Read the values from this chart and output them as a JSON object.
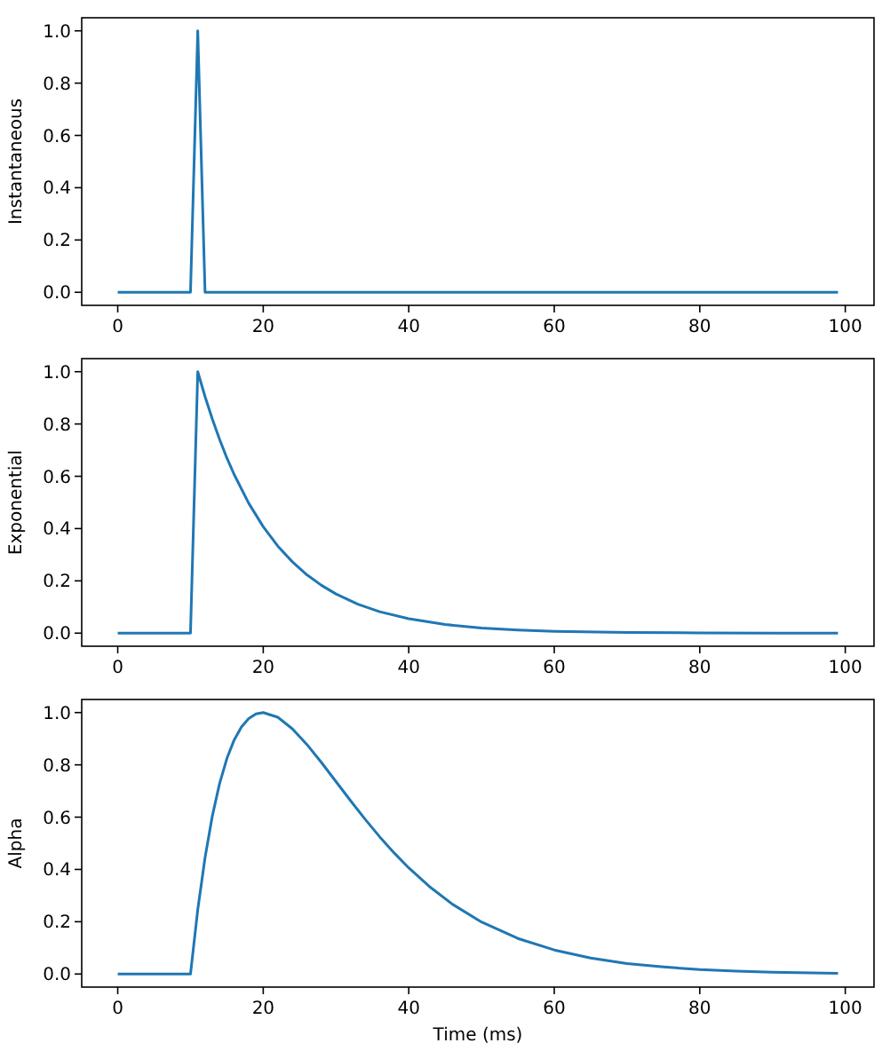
{
  "chart_data": [
    {
      "type": "line",
      "ylabel": "Instantaneous",
      "x": [
        0,
        10,
        11,
        12,
        99
      ],
      "series": [
        {
          "color": "#1f77b4",
          "values": [
            0,
            0,
            1,
            0,
            0
          ]
        }
      ],
      "xlim": [
        -4.95,
        103.95
      ],
      "ylim": [
        -0.05,
        1.05
      ],
      "xticks": [
        0,
        20,
        40,
        60,
        80,
        100
      ],
      "yticks": [
        {
          "value": 0,
          "label": "0.0"
        },
        {
          "value": 0.2,
          "label": "0.2"
        },
        {
          "value": 0.4,
          "label": "0.4"
        },
        {
          "value": 0.6,
          "label": "0.6"
        },
        {
          "value": 0.8,
          "label": "0.8"
        },
        {
          "value": 1,
          "label": "1.0"
        }
      ]
    },
    {
      "type": "line",
      "ylabel": "Exponential",
      "x": [
        0,
        10,
        11,
        12,
        13,
        14,
        15,
        16,
        18,
        20,
        22,
        24,
        26,
        28,
        30,
        33,
        36,
        40,
        45,
        50,
        55,
        60,
        70,
        80,
        90,
        99
      ],
      "series": [
        {
          "color": "#1f77b4",
          "values": [
            0,
            0,
            1,
            0.905,
            0.819,
            0.741,
            0.67,
            0.607,
            0.497,
            0.407,
            0.333,
            0.273,
            0.223,
            0.183,
            0.15,
            0.111,
            0.082,
            0.055,
            0.033,
            0.02,
            0.012,
            0.007,
            0.003,
            0.001,
            0,
            0
          ]
        }
      ],
      "xlim": [
        -4.95,
        103.95
      ],
      "ylim": [
        -0.05,
        1.05
      ],
      "xticks": [
        0,
        20,
        40,
        60,
        80,
        100
      ],
      "yticks": [
        {
          "value": 0,
          "label": "0.0"
        },
        {
          "value": 0.2,
          "label": "0.2"
        },
        {
          "value": 0.4,
          "label": "0.4"
        },
        {
          "value": 0.6,
          "label": "0.6"
        },
        {
          "value": 0.8,
          "label": "0.8"
        },
        {
          "value": 1,
          "label": "1.0"
        }
      ]
    },
    {
      "type": "line",
      "ylabel": "Alpha",
      "xlabel": "Time (ms)",
      "x": [
        0,
        10,
        11,
        12,
        13,
        14,
        15,
        16,
        17,
        18,
        19,
        20,
        22,
        24,
        26,
        28,
        30,
        32,
        34,
        36,
        38,
        40,
        43,
        46,
        50,
        55,
        60,
        65,
        70,
        75,
        80,
        85,
        90,
        99
      ],
      "series": [
        {
          "color": "#1f77b4",
          "values": [
            0,
            0,
            0.246,
            0.445,
            0.604,
            0.729,
            0.824,
            0.895,
            0.945,
            0.977,
            0.995,
            1,
            0.982,
            0.938,
            0.878,
            0.809,
            0.736,
            0.663,
            0.592,
            0.525,
            0.463,
            0.406,
            0.331,
            0.267,
            0.199,
            0.136,
            0.092,
            0.061,
            0.04,
            0.027,
            0.017,
            0.011,
            0.007,
            0.003
          ]
        }
      ],
      "xlim": [
        -4.95,
        103.95
      ],
      "ylim": [
        -0.05,
        1.05
      ],
      "xticks": [
        0,
        20,
        40,
        60,
        80,
        100
      ],
      "yticks": [
        {
          "value": 0,
          "label": "0.0"
        },
        {
          "value": 0.2,
          "label": "0.2"
        },
        {
          "value": 0.4,
          "label": "0.4"
        },
        {
          "value": 0.6,
          "label": "0.6"
        },
        {
          "value": 0.8,
          "label": "0.8"
        },
        {
          "value": 1,
          "label": "1.0"
        }
      ]
    }
  ]
}
